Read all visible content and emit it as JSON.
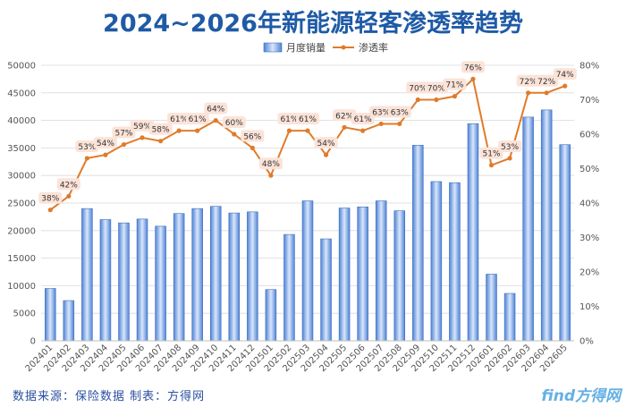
{
  "chart_data": {
    "type": "bar",
    "title": "2024~2026年新能源轻客渗透率趋势",
    "categories": [
      "202401",
      "202402",
      "202403",
      "202404",
      "202405",
      "202406",
      "202407",
      "202408",
      "202409",
      "202410",
      "202411",
      "202412",
      "202501",
      "202502",
      "202503",
      "202504",
      "202505",
      "202506",
      "202507",
      "202508",
      "202509",
      "202510",
      "202511",
      "202512",
      "202601",
      "202602",
      "202603",
      "202604",
      "202605"
    ],
    "series": [
      {
        "name": "月度销量",
        "type": "bar",
        "axis": "left",
        "color": "#6f9de0",
        "values": [
          9500,
          7300,
          24000,
          22000,
          21400,
          22100,
          20800,
          23100,
          24000,
          24400,
          23200,
          23400,
          9300,
          19300,
          25400,
          18500,
          24100,
          24300,
          25400,
          23600,
          35500,
          28900,
          28700,
          39400,
          12100,
          8600,
          40600,
          41900,
          35600
        ]
      },
      {
        "name": "渗透率",
        "type": "line",
        "axis": "right",
        "color": "#e07b2a",
        "values": [
          38,
          42,
          53,
          54,
          57,
          59,
          58,
          61,
          61,
          64,
          60,
          56,
          48,
          61,
          61,
          54,
          62,
          61,
          63,
          63,
          70,
          70,
          71,
          76,
          51,
          53,
          72,
          72,
          74
        ],
        "labels": [
          "38%",
          "42%",
          "53%",
          "54%",
          "57%",
          "59%",
          "58%",
          "61%",
          "61%",
          "64%",
          "60%",
          "56%",
          "48%",
          "61%",
          "61%",
          "54%",
          "62%",
          "61%",
          "63%",
          "63%",
          "70%",
          "70%",
          "71%",
          "76%",
          "51%",
          "53%",
          "72%",
          "72%",
          "74%"
        ]
      }
    ],
    "y_left": {
      "min": 0,
      "max": 50000,
      "ticks": [
        "0",
        "5000",
        "10000",
        "15000",
        "20000",
        "25000",
        "30000",
        "35000",
        "40000",
        "45000",
        "50000"
      ]
    },
    "y_right": {
      "min": 0,
      "max": 80,
      "ticks": [
        "0%",
        "10%",
        "20%",
        "30%",
        "40%",
        "50%",
        "60%",
        "70%",
        "80%"
      ]
    },
    "grid": true,
    "legend_position": "top-center"
  },
  "footer": {
    "source": "数据来源：保险数据  制表：方得网",
    "watermark": "find方得网"
  }
}
